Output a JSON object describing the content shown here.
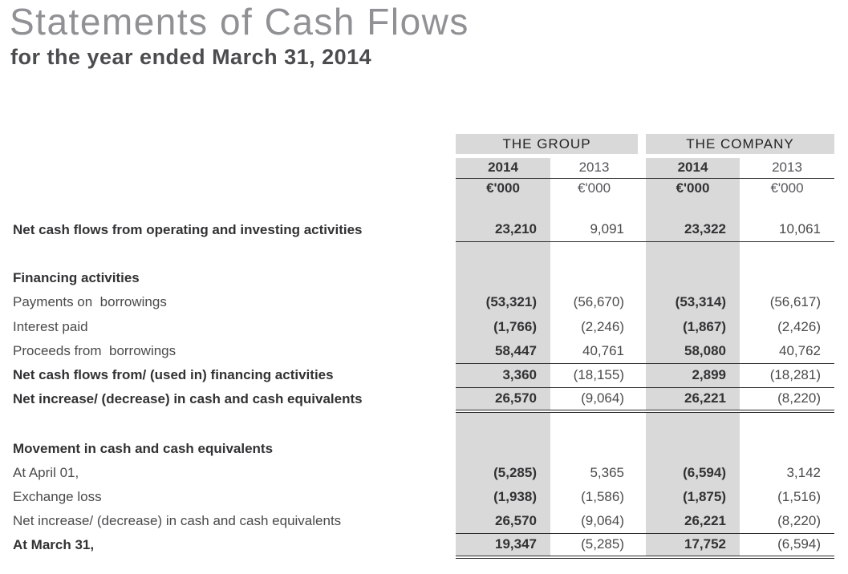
{
  "page": {
    "title": "Statements of Cash Flows",
    "subtitle": "for the year ended March 31, 2014"
  },
  "table": {
    "group_header": "THE GROUP",
    "company_header": "THE COMPANY",
    "year_headers": [
      "2014",
      "2013",
      "2014",
      "2013"
    ],
    "unit_headers": [
      "€'000",
      "€'000",
      "€'000",
      "€'000"
    ],
    "rows": [
      {
        "label": "Net cash flows from operating and investing activities",
        "values": [
          "23,210",
          "9,091",
          "23,322",
          "10,061"
        ]
      },
      {
        "label": "Financing activities",
        "values": [
          "",
          "",
          "",
          ""
        ]
      },
      {
        "label": "Payments on  borrowings",
        "values": [
          "(53,321)",
          "(56,670)",
          "(53,314)",
          "(56,617)"
        ]
      },
      {
        "label": "Interest paid",
        "values": [
          "(1,766)",
          "(2,246)",
          "(1,867)",
          "(2,426)"
        ]
      },
      {
        "label": "Proceeds from  borrowings",
        "values": [
          "58,447",
          "40,761",
          "58,080",
          "40,762"
        ]
      },
      {
        "label": "Net cash flows from/ (used in) financing activities",
        "values": [
          "3,360",
          "(18,155)",
          "2,899",
          "(18,281)"
        ]
      },
      {
        "label": "Net increase/ (decrease) in cash and cash equivalents",
        "values": [
          "26,570",
          "(9,064)",
          "26,221",
          "(8,220)"
        ]
      },
      {
        "label": "Movement in cash and cash equivalents",
        "values": [
          "",
          "",
          "",
          ""
        ]
      },
      {
        "label": "At April 01,",
        "values": [
          "(5,285)",
          "5,365",
          "(6,594)",
          "3,142"
        ]
      },
      {
        "label": "Exchange loss",
        "values": [
          "(1,938)",
          "(1,586)",
          "(1,875)",
          "(1,516)"
        ]
      },
      {
        "label": "Net increase/ (decrease) in cash and cash equivalents",
        "values": [
          "26,570",
          "(9,064)",
          "26,221",
          "(8,220)"
        ]
      },
      {
        "label": "At March 31,",
        "values": [
          "19,347",
          "(5,285)",
          "17,752",
          "(6,594)"
        ]
      }
    ]
  }
}
